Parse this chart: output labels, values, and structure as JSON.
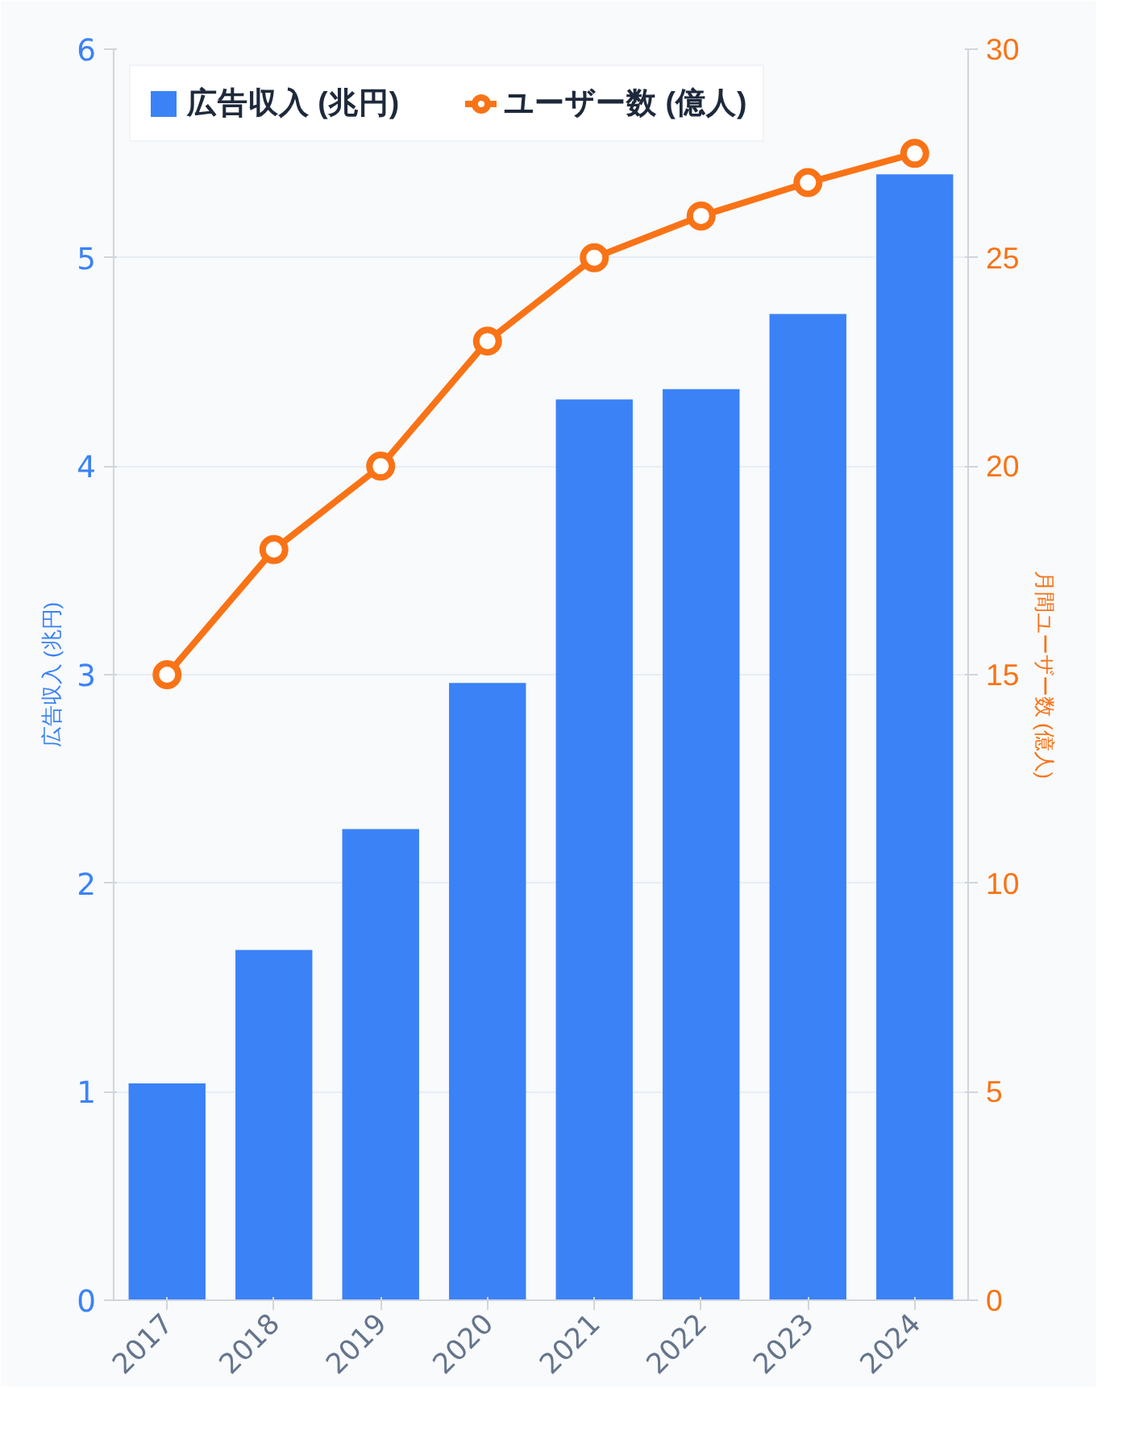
{
  "chart_data": {
    "type": "bar",
    "categories": [
      "2017",
      "2018",
      "2019",
      "2020",
      "2021",
      "2022",
      "2023",
      "2024"
    ],
    "ylabel": "広告収入 (兆円)",
    "y2label": "月間ユーザー数 (億人)",
    "series": [
      {
        "name": "広告収入 (兆円)",
        "color": "#3b82f6",
        "values": [
          1.04,
          1.68,
          2.26,
          2.96,
          4.32,
          4.37,
          4.73,
          5.4
        ]
      },
      {
        "name": "ユーザー数 (億人)",
        "type": "line",
        "axis": "y2",
        "color": "#f97316",
        "marker": "circle",
        "values": [
          15.0,
          18.0,
          20.0,
          23.0,
          25.0,
          26.0,
          26.8,
          27.5
        ]
      }
    ],
    "ylim": [
      0,
      6
    ],
    "yticks": [
      0,
      1,
      2,
      3,
      4,
      5,
      6
    ],
    "y2lim": [
      0,
      30
    ],
    "y2ticks": [
      0,
      5,
      10,
      15,
      20,
      25,
      30
    ],
    "grid": "y",
    "legend": "top"
  }
}
